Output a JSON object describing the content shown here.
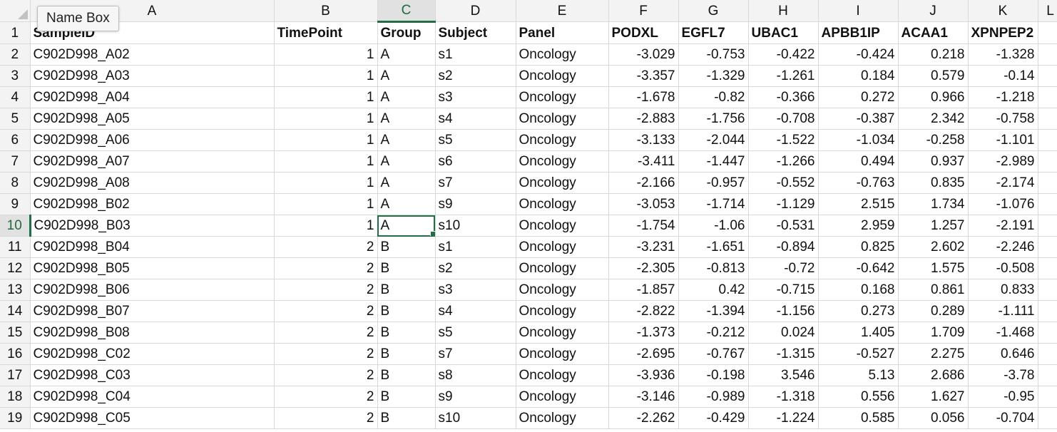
{
  "tooltip": {
    "name_box": "Name Box"
  },
  "columns": [
    "A",
    "B",
    "C",
    "D",
    "E",
    "F",
    "G",
    "H",
    "I",
    "J",
    "K",
    "L"
  ],
  "selected_column": "C",
  "selected_row": "10",
  "active_cell": "C10",
  "header": {
    "row_number": "1",
    "values": [
      "SampleID",
      "TimePoint",
      "Group",
      "Subject",
      "Panel",
      "PODXL",
      "EGFL7",
      "UBAC1",
      "APBB1IP",
      "ACAA1",
      "XPNPEP2",
      ""
    ]
  },
  "rows": [
    {
      "n": "2",
      "cells": [
        "C902D998_A02",
        "1",
        "A",
        "s1",
        "Oncology",
        "-3.029",
        "-0.753",
        "-0.422",
        "-0.424",
        "0.218",
        "-1.328",
        ""
      ]
    },
    {
      "n": "3",
      "cells": [
        "C902D998_A03",
        "1",
        "A",
        "s2",
        "Oncology",
        "-3.357",
        "-1.329",
        "-1.261",
        "0.184",
        "0.579",
        "-0.14",
        ""
      ]
    },
    {
      "n": "4",
      "cells": [
        "C902D998_A04",
        "1",
        "A",
        "s3",
        "Oncology",
        "-1.678",
        "-0.82",
        "-0.366",
        "0.272",
        "0.966",
        "-1.218",
        ""
      ]
    },
    {
      "n": "5",
      "cells": [
        "C902D998_A05",
        "1",
        "A",
        "s4",
        "Oncology",
        "-2.883",
        "-1.756",
        "-0.708",
        "-0.387",
        "2.342",
        "-0.758",
        ""
      ]
    },
    {
      "n": "6",
      "cells": [
        "C902D998_A06",
        "1",
        "A",
        "s5",
        "Oncology",
        "-3.133",
        "-2.044",
        "-1.522",
        "-1.034",
        "-0.258",
        "-1.101",
        ""
      ]
    },
    {
      "n": "7",
      "cells": [
        "C902D998_A07",
        "1",
        "A",
        "s6",
        "Oncology",
        "-3.411",
        "-1.447",
        "-1.266",
        "0.494",
        "0.937",
        "-2.989",
        ""
      ]
    },
    {
      "n": "8",
      "cells": [
        "C902D998_A08",
        "1",
        "A",
        "s7",
        "Oncology",
        "-2.166",
        "-0.957",
        "-0.552",
        "-0.763",
        "0.835",
        "-2.174",
        ""
      ]
    },
    {
      "n": "9",
      "cells": [
        "C902D998_B02",
        "1",
        "A",
        "s9",
        "Oncology",
        "-3.053",
        "-1.714",
        "-1.129",
        "2.515",
        "1.734",
        "-1.076",
        ""
      ]
    },
    {
      "n": "10",
      "cells": [
        "C902D998_B03",
        "1",
        "A",
        "s10",
        "Oncology",
        "-1.754",
        "-1.06",
        "-0.531",
        "2.959",
        "1.257",
        "-2.191",
        ""
      ]
    },
    {
      "n": "11",
      "cells": [
        "C902D998_B04",
        "2",
        "B",
        "s1",
        "Oncology",
        "-3.231",
        "-1.651",
        "-0.894",
        "0.825",
        "2.602",
        "-2.246",
        ""
      ]
    },
    {
      "n": "12",
      "cells": [
        "C902D998_B05",
        "2",
        "B",
        "s2",
        "Oncology",
        "-2.305",
        "-0.813",
        "-0.72",
        "-0.642",
        "1.575",
        "-0.508",
        ""
      ]
    },
    {
      "n": "13",
      "cells": [
        "C902D998_B06",
        "2",
        "B",
        "s3",
        "Oncology",
        "-1.857",
        "0.42",
        "-0.715",
        "0.168",
        "0.861",
        "0.833",
        ""
      ]
    },
    {
      "n": "14",
      "cells": [
        "C902D998_B07",
        "2",
        "B",
        "s4",
        "Oncology",
        "-2.822",
        "-1.394",
        "-1.156",
        "0.273",
        "0.289",
        "-1.111",
        ""
      ]
    },
    {
      "n": "15",
      "cells": [
        "C902D998_B08",
        "2",
        "B",
        "s5",
        "Oncology",
        "-1.373",
        "-0.212",
        "0.024",
        "1.405",
        "1.709",
        "-1.468",
        ""
      ]
    },
    {
      "n": "16",
      "cells": [
        "C902D998_C02",
        "2",
        "B",
        "s7",
        "Oncology",
        "-2.695",
        "-0.767",
        "-1.315",
        "-0.527",
        "2.275",
        "0.646",
        ""
      ]
    },
    {
      "n": "17",
      "cells": [
        "C902D998_C03",
        "2",
        "B",
        "s8",
        "Oncology",
        "-3.936",
        "-0.198",
        "3.546",
        "5.13",
        "2.686",
        "-3.78",
        ""
      ]
    },
    {
      "n": "18",
      "cells": [
        "C902D998_C04",
        "2",
        "B",
        "s9",
        "Oncology",
        "-3.146",
        "-0.989",
        "-1.318",
        "0.556",
        "1.627",
        "-0.95",
        ""
      ]
    },
    {
      "n": "19",
      "cells": [
        "C902D998_C05",
        "2",
        "B",
        "s10",
        "Oncology",
        "-2.262",
        "-0.429",
        "-1.224",
        "0.585",
        "0.056",
        "-0.704",
        ""
      ]
    }
  ]
}
